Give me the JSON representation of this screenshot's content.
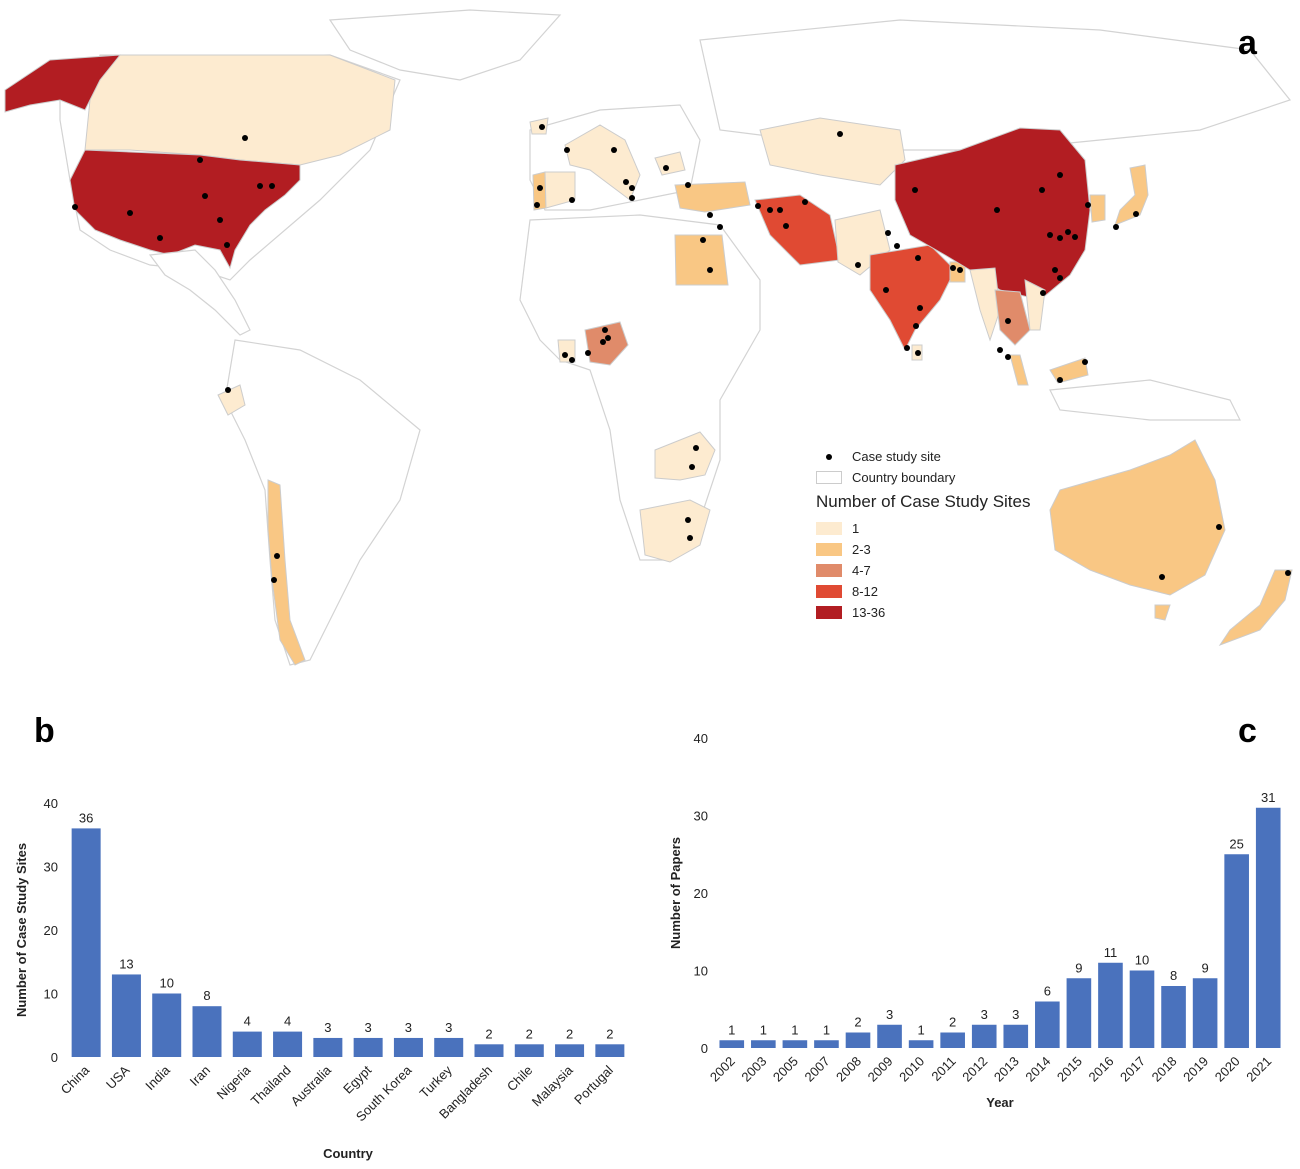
{
  "panels": {
    "a": "a",
    "b": "b",
    "c": "c"
  },
  "map": {
    "legend": {
      "site_label": "Case study site",
      "boundary_label": "Country boundary",
      "title": "Number of Case Study Sites",
      "classes": [
        {
          "label": "1",
          "color": "#fdebd0"
        },
        {
          "label": "2-3",
          "color": "#f9c784"
        },
        {
          "label": "4-7",
          "color": "#e08b6a"
        },
        {
          "label": "8-12",
          "color": "#e04a33"
        },
        {
          "label": "13-36",
          "color": "#b21d22"
        }
      ]
    }
  },
  "chart_data": [
    {
      "type": "bar",
      "title": "",
      "xlabel": "Country",
      "ylabel": "Number of Case Study Sites",
      "ylim": [
        0,
        40
      ],
      "yticks": [
        0,
        10,
        20,
        30,
        40
      ],
      "categories": [
        "China",
        "USA",
        "India",
        "Iran",
        "Nigeria",
        "Thailand",
        "Australia",
        "Egypt",
        "South Korea",
        "Turkey",
        "Bangladesh",
        "Chile",
        "Malaysia",
        "Portugal"
      ],
      "values": [
        36,
        13,
        10,
        8,
        4,
        4,
        3,
        3,
        3,
        3,
        2,
        2,
        2,
        2
      ],
      "color": "#4a72bd"
    },
    {
      "type": "bar",
      "title": "",
      "xlabel": "Year",
      "ylabel": "Number of Papers",
      "ylim": [
        0,
        40
      ],
      "yticks": [
        0,
        10,
        20,
        30,
        40
      ],
      "categories": [
        "2002",
        "2003",
        "2005",
        "2007",
        "2008",
        "2009",
        "2010",
        "2011",
        "2012",
        "2013",
        "2014",
        "2015",
        "2016",
        "2017",
        "2018",
        "2019",
        "2020",
        "2021"
      ],
      "values": [
        1,
        1,
        1,
        1,
        2,
        3,
        1,
        2,
        3,
        3,
        6,
        9,
        11,
        10,
        8,
        9,
        25,
        31
      ],
      "color": "#4a72bd"
    }
  ]
}
